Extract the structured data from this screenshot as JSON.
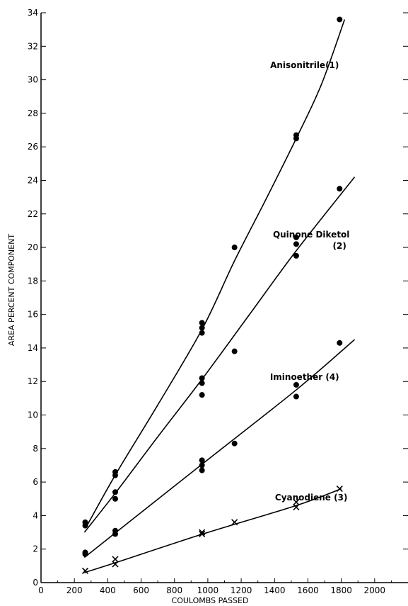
{
  "chart_data": {
    "type": "scatter",
    "title": "",
    "xlabel": "COULOMBS PASSED",
    "ylabel": "AREA PERCENT COMPONENT",
    "xlim": [
      0,
      2200
    ],
    "ylim": [
      0,
      34
    ],
    "xticks": [
      0,
      200,
      400,
      600,
      800,
      1000,
      1200,
      1400,
      1600,
      1800,
      2000
    ],
    "yticks": [
      0,
      2,
      4,
      6,
      8,
      10,
      12,
      14,
      16,
      18,
      20,
      22,
      24,
      26,
      28,
      30,
      32,
      34
    ],
    "grid": false,
    "series": [
      {
        "name": "Anisonitrile",
        "label_lines": [
          "Anisonitrile(1)"
        ],
        "marker": "dot",
        "points": [
          [
            265,
            3.6
          ],
          [
            265,
            3.4
          ],
          [
            445,
            6.6
          ],
          [
            445,
            6.4
          ],
          [
            965,
            15.5
          ],
          [
            965,
            15.2
          ],
          [
            965,
            14.9
          ],
          [
            1160,
            20.0
          ],
          [
            1530,
            26.7
          ],
          [
            1530,
            26.5
          ],
          [
            1790,
            33.6
          ]
        ],
        "curve": [
          [
            270,
            3.3
          ],
          [
            450,
            6.5
          ],
          [
            700,
            10.6
          ],
          [
            970,
            15.2
          ],
          [
            1160,
            19.2
          ],
          [
            1350,
            22.9
          ],
          [
            1530,
            26.5
          ],
          [
            1680,
            29.7
          ],
          [
            1820,
            33.6
          ]
        ]
      },
      {
        "name": "Quinone Diketol",
        "label_lines": [
          "Quinone Diketol",
          "(2)"
        ],
        "marker": "dot",
        "points": [
          [
            965,
            12.2
          ],
          [
            965,
            11.9
          ],
          [
            965,
            11.2
          ],
          [
            1160,
            13.8
          ],
          [
            445,
            5.4
          ],
          [
            445,
            5.0
          ],
          [
            1530,
            20.6
          ],
          [
            1530,
            20.2
          ],
          [
            1530,
            19.5
          ],
          [
            1790,
            23.5
          ]
        ],
        "curve": [
          [
            260,
            3.0
          ],
          [
            450,
            5.4
          ],
          [
            700,
            8.7
          ],
          [
            970,
            12.2
          ],
          [
            1250,
            16.0
          ],
          [
            1530,
            19.8
          ],
          [
            1880,
            24.2
          ]
        ]
      },
      {
        "name": "Iminoether",
        "label_lines": [
          "Iminoether (4)"
        ],
        "marker": "dot",
        "points": [
          [
            265,
            1.8
          ],
          [
            265,
            1.7
          ],
          [
            445,
            3.1
          ],
          [
            445,
            2.9
          ],
          [
            965,
            7.3
          ],
          [
            965,
            7.0
          ],
          [
            965,
            6.7
          ],
          [
            1160,
            8.3
          ],
          [
            1530,
            11.8
          ],
          [
            1530,
            11.1
          ],
          [
            1790,
            14.3
          ]
        ],
        "curve": [
          [
            260,
            1.5
          ],
          [
            450,
            3.0
          ],
          [
            970,
            7.1
          ],
          [
            1530,
            11.5
          ],
          [
            1880,
            14.5
          ]
        ]
      },
      {
        "name": "Cyanodiene",
        "label_lines": [
          "Cyanodiene (3)"
        ],
        "marker": "x",
        "points": [
          [
            265,
            0.7
          ],
          [
            445,
            1.4
          ],
          [
            445,
            1.1
          ],
          [
            965,
            3.0
          ],
          [
            965,
            2.9
          ],
          [
            1160,
            3.6
          ],
          [
            1530,
            4.8
          ],
          [
            1530,
            4.5
          ],
          [
            1790,
            5.6
          ]
        ],
        "curve": [
          [
            260,
            0.6
          ],
          [
            450,
            1.2
          ],
          [
            970,
            2.9
          ],
          [
            1530,
            4.6
          ],
          [
            1800,
            5.6
          ]
        ]
      }
    ],
    "label_anchors": [
      [
        1580,
        30.7
      ],
      [
        1620,
        20.6
      ],
      [
        1580,
        12.1
      ],
      [
        1620,
        4.9
      ]
    ]
  }
}
